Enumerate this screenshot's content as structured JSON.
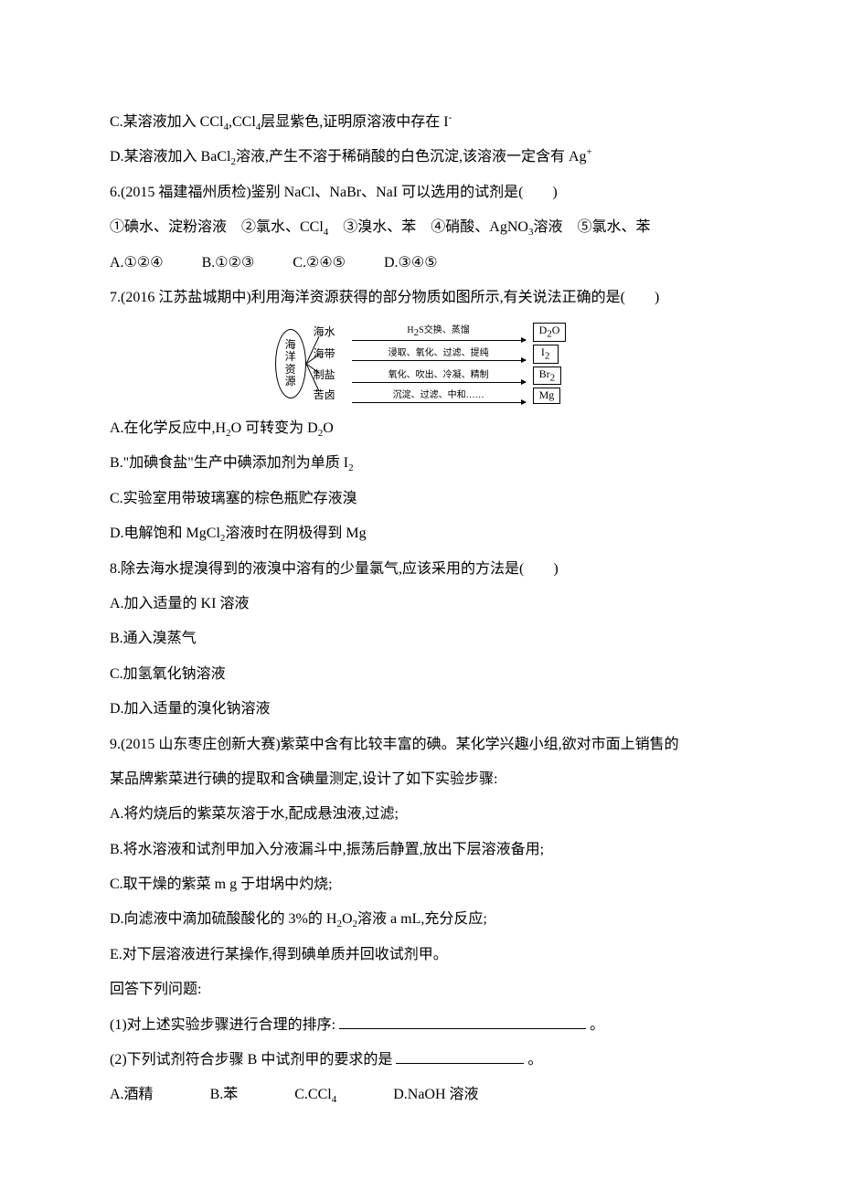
{
  "q5": {
    "C": "C.某溶液加入 CCl₄,CCl₄层显紫色,证明原溶液中存在 I⁻",
    "D": "D.某溶液加入 BaCl₂溶液,产生不溶于稀硝酸的白色沉淀,该溶液一定含有 Ag⁺"
  },
  "q6": {
    "stem": "6.(2015 福建福州质检)鉴别 NaCl、NaBr、NaI 可以选用的试剂是(　　)",
    "items": "①碘水、淀粉溶液　②氯水、CCl₄　③溴水、苯　④硝酸、AgNO₃溶液　⑤氯水、苯",
    "A": "A.①②④",
    "B": "B.①②③",
    "C": "C.②④⑤",
    "D": "D.③④⑤"
  },
  "q7": {
    "stem": "7.(2016 江苏盐城期中)利用海洋资源获得的部分物质如图所示,有关说法正确的是(　　)",
    "diagram": {
      "source": "海洋资源",
      "rows": [
        {
          "label": "海水",
          "proc": "H₂S交换、蒸馏",
          "box": "D₂O"
        },
        {
          "label": "海带",
          "proc": "浸取、氧化、过滤、提纯",
          "box": "I₂"
        },
        {
          "label": "制盐",
          "proc": "氧化、吹出、冷凝、精制",
          "box": "Br₂"
        },
        {
          "label": "苦卤",
          "proc": "沉淀、过滤、中和……",
          "box": "Mg"
        }
      ]
    },
    "A": "A.在化学反应中,H₂O 可转变为 D₂O",
    "B": "B.\"加碘食盐\"生产中碘添加剂为单质 I₂",
    "C": "C.实验室用带玻璃塞的棕色瓶贮存液溴",
    "D": "D.电解饱和 MgCl₂溶液时在阴极得到 Mg"
  },
  "q8": {
    "stem": "8.除去海水提溴得到的液溴中溶有的少量氯气,应该采用的方法是(　　)",
    "A": "A.加入适量的 KI 溶液",
    "B": "B.通入溴蒸气",
    "C": "C.加氢氧化钠溶液",
    "D": "D.加入适量的溴化钠溶液"
  },
  "q9": {
    "stem1": "9.(2015 山东枣庄创新大赛)紫菜中含有比较丰富的碘。某化学兴趣小组,欲对市面上销售的",
    "stem2": "某品牌紫菜进行碘的提取和含碘量测定,设计了如下实验步骤:",
    "A": "A.将灼烧后的紫菜灰溶于水,配成悬浊液,过滤;",
    "B": "B.将水溶液和试剂甲加入分液漏斗中,振荡后静置,放出下层溶液备用;",
    "C": "C.取干燥的紫菜 m g 于坩埚中灼烧;",
    "D": "D.向滤液中滴加硫酸酸化的 3%的 H₂O₂溶液 a mL,充分反应;",
    "E": "E.对下层溶液进行某操作,得到碘单质并回收试剂甲。",
    "answer_label": "回答下列问题:",
    "sub1": "(1)对上述实验步骤进行合理的排序:",
    "sub1_end": "。",
    "sub2": "(2)下列试剂符合步骤 B 中试剂甲的要求的是",
    "sub2_end": "。",
    "opts": {
      "A": "A.酒精",
      "B": "B.苯",
      "C": "C.CCl₄",
      "D": "D.NaOH 溶液"
    }
  }
}
